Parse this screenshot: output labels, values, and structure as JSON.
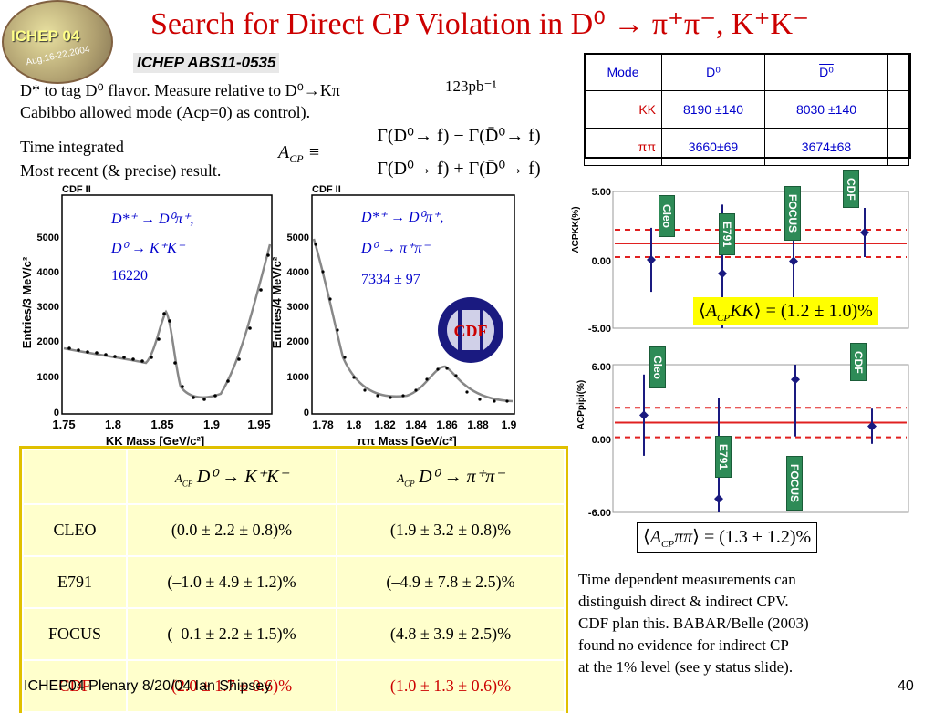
{
  "slide": {
    "title": "Search for Direct CP Violation in D⁰ → π⁺π⁻, K⁺K⁻",
    "logo_text": "ICHEP 04",
    "logo_subtext": "Aug.16-22,2004",
    "abs_ref": "ICHEP ABS11-0535",
    "intro_line1": "D* to tag D⁰ flavor. Measure relative to D⁰→Kπ",
    "intro_lumi": "123pb⁻¹",
    "intro_line2": "Cabibbo allowed mode (Acp=0) as control).",
    "time_line1": "Time integrated",
    "time_line2": "Most recent (& precise) result.",
    "acp_formula": "A_CP ≡ [Γ(D⁰→f) − Γ(D̄⁰→f)] / [Γ(D⁰→f) + Γ(D̄⁰→f)]",
    "acp_lhs": "A",
    "acp_lhs_sub": "CP",
    "acp_num": "Γ(D⁰→ f) − Γ(D̄⁰→ f)",
    "acp_den": "Γ(D⁰→ f) + Γ(D̄⁰→ f)",
    "footer_left": "ICHEP04 Plenary 8/20/04 Ian Shipsey",
    "page_number": "40",
    "bottom_text": [
      "Time dependent measurements can",
      "distinguish direct & indirect CPV.",
      "CDF plan this. BABAR/Belle (2003)",
      "found no evidence for indirect CP",
      "at the 1% level (see y status slide)."
    ]
  },
  "mode_table": {
    "headers": [
      "Mode",
      "D⁰",
      "D⁰"
    ],
    "rows": [
      {
        "mode": "KK",
        "d0": "8190 ±140",
        "d0bar": "8030 ±140"
      },
      {
        "mode": "ππ",
        "d0": "3660±69",
        "d0bar": "3674±68"
      }
    ]
  },
  "mass_plots": {
    "left": {
      "tag": "CDF II",
      "decay1": "D*⁺ → D⁰π⁺,",
      "decay2": "D⁰ → K⁺K⁻",
      "count": "16220",
      "ylabel": "Entries/3 MeV/c²",
      "xlabel": "KK Mass [GeV/c²]",
      "yticks": [
        "5000",
        "4000",
        "3000",
        "2000",
        "1000",
        "0"
      ],
      "xticks": [
        "1.75",
        "1.8",
        "1.85",
        "1.9",
        "1.95"
      ]
    },
    "right": {
      "tag": "CDF II",
      "decay1": "D*⁺ → D⁰π⁺,",
      "decay2": "D⁰ → π⁺π⁻",
      "count": "7334 ± 97",
      "ylabel": "Entries/4 MeV/c²",
      "xlabel": "ππ Mass [GeV/c²]",
      "yticks": [
        "5000",
        "4000",
        "3000",
        "2000",
        "1000",
        "0"
      ],
      "xticks": [
        "1.78",
        "1.8",
        "1.82",
        "1.84",
        "1.86",
        "1.88",
        "1.9"
      ],
      "logo": "CDF"
    }
  },
  "results_table": {
    "headers": [
      "",
      "A_CP D⁰ → K⁺K⁻",
      "A_CP D⁰ → π⁺π⁻"
    ],
    "header_kk": "D⁰ → K⁺K⁻",
    "header_pp": "D⁰ → π⁺π⁻",
    "header_prefix": "A",
    "header_prefix_sub": "CP",
    "rows": [
      {
        "exp": "CLEO",
        "kk": "(0.0 ± 2.2 ± 0.8)%",
        "pp": "(1.9 ± 3.2 ± 0.8)%"
      },
      {
        "exp": "E791",
        "kk": "(–1.0 ± 4.9 ± 1.2)%",
        "pp": "(–4.9 ± 7.8 ± 2.5)%"
      },
      {
        "exp": "FOCUS",
        "kk": "(–0.1 ± 2.2 ± 1.5)%",
        "pp": "(4.8 ± 3.9 ± 2.5)%"
      },
      {
        "exp": "CDF",
        "kk": "(2.0 ± 1.7 ± 0.6)%",
        "pp": "(1.0 ± 1.3 ± 0.6)%"
      }
    ]
  },
  "chart_data": [
    {
      "type": "scatter",
      "ylabel": "ACPKK(%)",
      "ylim": [
        -5.0,
        5.0
      ],
      "yticks": [
        "5.00",
        "0.00",
        "-5.00"
      ],
      "categories": [
        "Cleo",
        "E791",
        "FOCUS",
        "CDF"
      ],
      "values": [
        0.0,
        -1.0,
        -0.1,
        2.0
      ],
      "errors": [
        2.34,
        5.04,
        2.66,
        1.8
      ],
      "average": 1.2,
      "average_error": 1.0,
      "summary": "⟨A_CP KK⟩ = (1.2 ± 1.0)%",
      "summary_lhs": "A",
      "summary_sub": "CP",
      "summary_rest": "KK",
      "summary_rhs": "= (1.2 ± 1.0)%"
    },
    {
      "type": "scatter",
      "ylabel": "ACPpipi(%)",
      "ylim": [
        -6.0,
        6.0
      ],
      "yticks": [
        "6.00",
        "0.00",
        "-6.00"
      ],
      "categories": [
        "Cleo",
        "E791",
        "FOCUS",
        "CDF"
      ],
      "values": [
        1.9,
        -4.9,
        4.8,
        1.0
      ],
      "errors": [
        3.3,
        8.19,
        4.63,
        1.43
      ],
      "average": 1.3,
      "average_error": 1.2,
      "summary": "⟨A_CP ππ⟩ = (1.3 ± 1.2)%",
      "summary_lhs": "A",
      "summary_sub": "CP",
      "summary_rest": "ππ",
      "summary_rhs": "= (1.3 ± 1.2)%"
    }
  ]
}
